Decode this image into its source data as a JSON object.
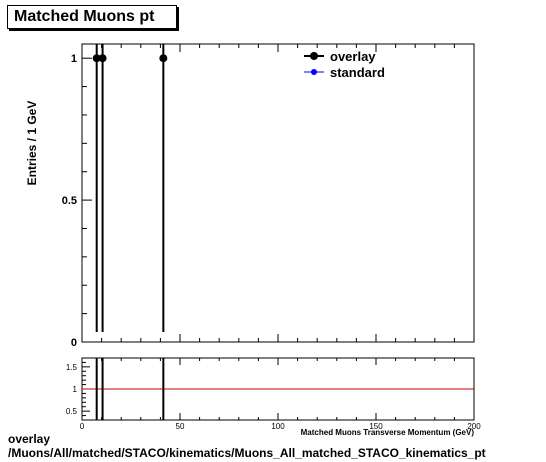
{
  "chart_data": [
    {
      "type": "scatter",
      "title": "Matched Muons pt",
      "ylabel": "Entries / 1 GeV",
      "xlim": [
        0,
        200
      ],
      "ylim": [
        0,
        1.05
      ],
      "yticks": [
        "0",
        "0.5",
        "1"
      ],
      "legend_position": "top-right",
      "series": [
        {
          "name": "overlay",
          "color": "#000000",
          "marker": "circle",
          "x": [
            7.5,
            10.5,
            41.5
          ],
          "y": [
            1,
            1,
            1
          ]
        },
        {
          "name": "standard",
          "color": "#0000ff",
          "marker": "circle",
          "x": [],
          "y": []
        }
      ]
    },
    {
      "type": "line",
      "xlabel": "Matched Muons Transverse Momentum (GeV)",
      "xlim": [
        0,
        200
      ],
      "ylim": [
        0.3,
        1.7
      ],
      "xticks": [
        "0",
        "50",
        "100",
        "150",
        "200"
      ],
      "yticks": [
        "0.5",
        "1",
        "1.5"
      ],
      "reference_line": {
        "y": 1,
        "color": "#c00000"
      },
      "ratio_spikes_x": [
        7.5,
        10.5,
        41.5
      ]
    }
  ],
  "footer": {
    "line1": "overlay",
    "line2": "/Muons/All/matched/STACO/kinematics/Muons_All_matched_STACO_kinematics_pt"
  }
}
